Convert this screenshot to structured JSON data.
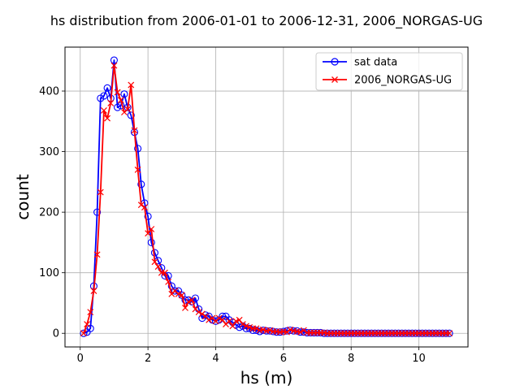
{
  "chart_data": {
    "type": "line",
    "title": "hs distribution from 2006-01-01 to 2006-12-31, 2006_NORGAS-UG",
    "xlabel": "hs (m)",
    "ylabel": "count",
    "xlim": [
      -0.45,
      11.45
    ],
    "ylim": [
      -22.5,
      472.5
    ],
    "xticks": [
      0,
      2,
      4,
      6,
      8,
      10
    ],
    "yticks": [
      0,
      100,
      200,
      300,
      400
    ],
    "xtick_labels": [
      "0",
      "2",
      "4",
      "6",
      "8",
      "10"
    ],
    "ytick_labels": [
      "0",
      "100",
      "200",
      "300",
      "400"
    ],
    "grid": true,
    "legend_position": "upper right",
    "series": [
      {
        "name": "sat data",
        "color": "#0000ff",
        "marker": "open-circle",
        "x": [
          0.1,
          0.2,
          0.3,
          0.4,
          0.5,
          0.6,
          0.7,
          0.8,
          0.9,
          1.0,
          1.1,
          1.2,
          1.3,
          1.4,
          1.5,
          1.6,
          1.7,
          1.8,
          1.9,
          2.0,
          2.1,
          2.2,
          2.3,
          2.4,
          2.5,
          2.6,
          2.7,
          2.8,
          2.9,
          3.0,
          3.1,
          3.2,
          3.3,
          3.4,
          3.5,
          3.6,
          3.7,
          3.8,
          3.9,
          4.0,
          4.1,
          4.2,
          4.3,
          4.4,
          4.5,
          4.6,
          4.7,
          4.8,
          4.9,
          5.0,
          5.1,
          5.2,
          5.3,
          5.4,
          5.5,
          5.6,
          5.7,
          5.8,
          5.9,
          6.0,
          6.1,
          6.2,
          6.3,
          6.4,
          6.5,
          6.6,
          6.7,
          6.8,
          6.9,
          7.0,
          7.1,
          7.2,
          7.3,
          7.4,
          7.5,
          7.6,
          7.7,
          7.8,
          7.9,
          8.0,
          8.1,
          8.2,
          8.3,
          8.4,
          8.5,
          8.6,
          8.7,
          8.8,
          8.9,
          9.0,
          9.1,
          9.2,
          9.3,
          9.4,
          9.5,
          9.6,
          9.7,
          9.8,
          9.9,
          10.0,
          10.1,
          10.2,
          10.3,
          10.4,
          10.5,
          10.6,
          10.7,
          10.8,
          10.9
        ],
        "values": [
          0,
          2,
          8,
          78,
          200,
          388,
          392,
          405,
          388,
          451,
          373,
          376,
          395,
          373,
          360,
          332,
          305,
          246,
          215,
          193,
          150,
          133,
          120,
          108,
          95,
          95,
          78,
          70,
          70,
          63,
          55,
          55,
          52,
          58,
          40,
          25,
          30,
          28,
          22,
          20,
          22,
          28,
          28,
          22,
          18,
          14,
          10,
          12,
          8,
          8,
          5,
          5,
          3,
          5,
          4,
          4,
          3,
          2,
          2,
          3,
          4,
          5,
          4,
          4,
          2,
          2,
          1,
          1,
          1,
          1,
          1,
          0,
          0,
          0,
          0,
          0,
          0,
          0,
          0,
          0,
          0,
          0,
          0,
          0,
          0,
          0,
          0,
          0,
          0,
          0,
          0,
          0,
          0,
          0,
          0,
          0,
          0,
          0,
          0,
          0,
          0,
          0,
          0,
          0,
          0,
          0,
          0,
          0,
          0
        ]
      },
      {
        "name": "2006_NORGAS-UG",
        "color": "#ff0000",
        "marker": "x",
        "x": [
          0.1,
          0.2,
          0.3,
          0.4,
          0.5,
          0.6,
          0.7,
          0.8,
          0.9,
          1.0,
          1.1,
          1.2,
          1.3,
          1.4,
          1.5,
          1.6,
          1.7,
          1.8,
          1.9,
          2.0,
          2.1,
          2.2,
          2.3,
          2.4,
          2.5,
          2.6,
          2.7,
          2.8,
          2.9,
          3.0,
          3.1,
          3.2,
          3.3,
          3.4,
          3.5,
          3.6,
          3.7,
          3.8,
          3.9,
          4.0,
          4.1,
          4.2,
          4.3,
          4.4,
          4.5,
          4.6,
          4.7,
          4.8,
          4.9,
          5.0,
          5.1,
          5.2,
          5.3,
          5.4,
          5.5,
          5.6,
          5.7,
          5.8,
          5.9,
          6.0,
          6.1,
          6.2,
          6.3,
          6.4,
          6.5,
          6.6,
          6.7,
          6.8,
          6.9,
          7.0,
          7.1,
          7.2,
          7.3,
          7.4,
          7.5,
          7.6,
          7.7,
          7.8,
          7.9,
          8.0,
          8.1,
          8.2,
          8.3,
          8.4,
          8.5,
          8.6,
          8.7,
          8.8,
          8.9,
          9.0,
          9.1,
          9.2,
          9.3,
          9.4,
          9.5,
          9.6,
          9.7,
          9.8,
          9.9,
          10.0,
          10.1,
          10.2,
          10.3,
          10.4,
          10.5,
          10.6,
          10.7,
          10.8,
          10.9
        ],
        "values": [
          0,
          15,
          35,
          70,
          130,
          233,
          368,
          355,
          380,
          442,
          398,
          385,
          365,
          370,
          410,
          335,
          270,
          212,
          208,
          165,
          172,
          118,
          110,
          100,
          100,
          85,
          65,
          70,
          65,
          63,
          42,
          52,
          55,
          40,
          35,
          32,
          28,
          22,
          25,
          20,
          25,
          22,
          15,
          20,
          12,
          20,
          22,
          15,
          12,
          10,
          8,
          8,
          5,
          6,
          4,
          5,
          3,
          3,
          2,
          3,
          2,
          6,
          4,
          3,
          2,
          5,
          1,
          1,
          1,
          1,
          1,
          1,
          0,
          0,
          0,
          0,
          0,
          0,
          0,
          0,
          0,
          0,
          0,
          0,
          0,
          0,
          0,
          0,
          0,
          0,
          0,
          0,
          0,
          0,
          0,
          0,
          0,
          0,
          0,
          0,
          0,
          0,
          0,
          0,
          0,
          0,
          0,
          0,
          0
        ]
      }
    ]
  }
}
